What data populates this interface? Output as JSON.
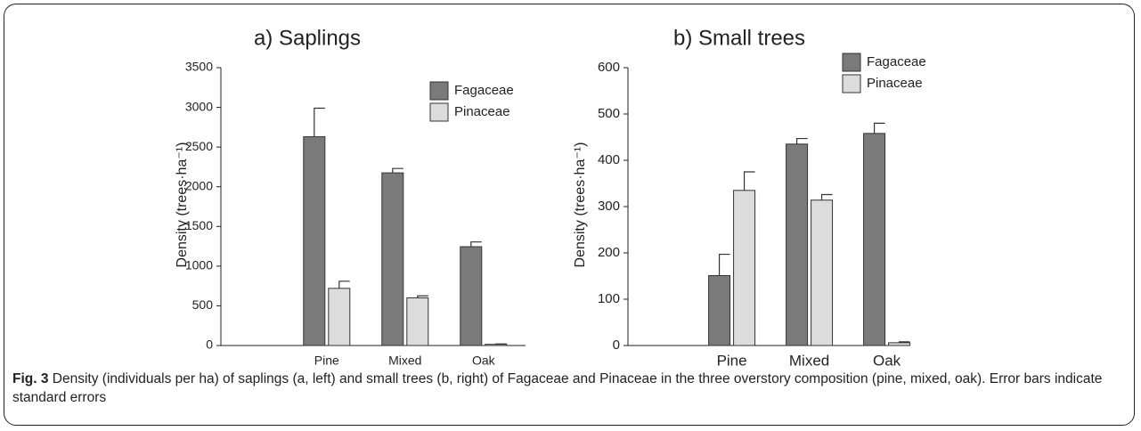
{
  "chart_data": [
    {
      "type": "bar",
      "title": "a) Saplings",
      "y_label": "Density (trees·ha⁻¹)",
      "categories": [
        "Pine",
        "Mixed",
        "Oak"
      ],
      "series": [
        {
          "name": "Fagaceae",
          "color": "#7a7a7a",
          "values": [
            2630,
            2175,
            1245
          ],
          "errors": [
            360,
            55,
            60
          ]
        },
        {
          "name": "Pinaceae",
          "color": "#dcdcdc",
          "values": [
            720,
            600,
            15
          ],
          "errors": [
            90,
            25,
            5
          ]
        }
      ],
      "ylim": [
        0,
        3500
      ],
      "yticks": [
        0,
        500,
        1000,
        1500,
        2000,
        2500,
        3000,
        3500
      ]
    },
    {
      "type": "bar",
      "title": "b) Small trees",
      "y_label": "Density (trees·ha⁻¹)",
      "categories": [
        "Pine",
        "Mixed",
        "Oak"
      ],
      "series": [
        {
          "name": "Fagaceae",
          "color": "#7a7a7a",
          "values": [
            151,
            435,
            458
          ],
          "errors": [
            46,
            12,
            22
          ]
        },
        {
          "name": "Pinaceae",
          "color": "#dcdcdc",
          "values": [
            335,
            314,
            6
          ],
          "errors": [
            40,
            12,
            2
          ]
        }
      ],
      "ylim": [
        0,
        600
      ],
      "yticks": [
        0,
        100,
        200,
        300,
        400,
        500,
        600
      ]
    }
  ],
  "caption": {
    "label": "Fig. 3",
    "text": "Density (individuals per ha) of saplings (a, left) and small trees (b, right) of Fagaceae and Pinaceae in the three overstory composition (pine, mixed, oak). Error bars indicate standard errors"
  }
}
